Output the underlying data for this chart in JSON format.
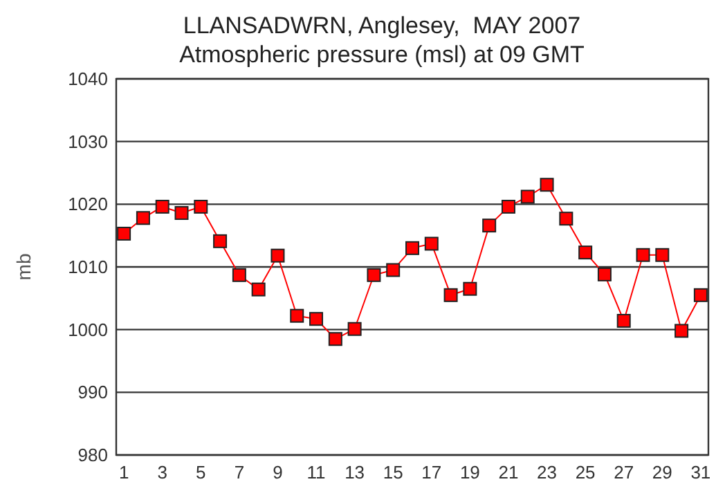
{
  "chart_data": {
    "type": "line",
    "title": "LLANSADWRN, Anglesey,  MAY 2007",
    "subtitle": "Atmospheric pressure  (msl) at 09 GMT",
    "ylabel": "mb",
    "x": [
      1,
      2,
      3,
      4,
      5,
      6,
      7,
      8,
      9,
      10,
      11,
      12,
      13,
      14,
      15,
      16,
      17,
      18,
      19,
      20,
      21,
      22,
      23,
      24,
      25,
      26,
      27,
      28,
      29,
      30,
      31
    ],
    "xlim": [
      0.6,
      31.4
    ],
    "xticks": [
      1,
      3,
      5,
      7,
      9,
      11,
      13,
      15,
      17,
      19,
      21,
      23,
      25,
      27,
      29,
      31
    ],
    "series": [
      {
        "color": "#ff0000",
        "values": [
          1015.3,
          1017.8,
          1019.6,
          1018.6,
          1019.6,
          1014.1,
          1008.7,
          1006.4,
          1011.8,
          1002.2,
          1001.7,
          998.5,
          1000.1,
          1008.7,
          1009.5,
          1013.0,
          1013.7,
          1005.5,
          1006.5,
          1016.6,
          1019.6,
          1021.2,
          1023.1,
          1017.7,
          1012.3,
          1008.8,
          1001.4,
          1011.9,
          1011.9,
          999.8,
          1005.5
        ]
      }
    ],
    "ylim": [
      980,
      1040
    ],
    "yticks": [
      980,
      990,
      1000,
      1010,
      1020,
      1030,
      1040
    ],
    "grid": "y",
    "marker": "square",
    "line_style": "solid"
  }
}
